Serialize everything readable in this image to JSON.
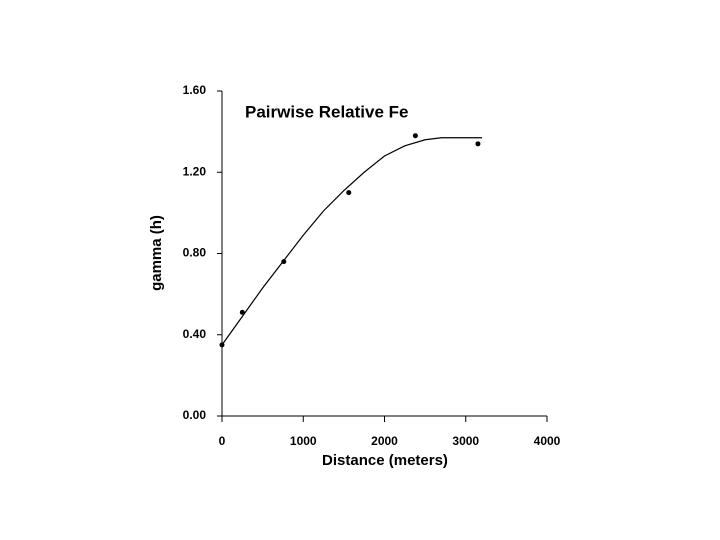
{
  "chart_data": {
    "type": "scatter",
    "title": "Pairwise Relative Fe",
    "x_label": "Distance (meters)",
    "y_label": "gamma (h)",
    "xlim": [
      0,
      4000
    ],
    "xticks": [
      0,
      1000,
      2000,
      3000,
      4000
    ],
    "ylim": [
      0,
      1.6
    ],
    "yticks": [
      {
        "value": 0,
        "label": "0.00"
      },
      {
        "value": 0.4,
        "label": "0.40"
      },
      {
        "value": 0.8,
        "label": "0.80"
      },
      {
        "value": 1.2,
        "label": "1.20"
      },
      {
        "value": 1.6,
        "label": "1.60"
      }
    ],
    "series": [
      {
        "mode": "markers",
        "color": "#000000",
        "x": [
          0,
          250,
          760,
          1560,
          2380,
          3150
        ],
        "values": [
          0.35,
          0.51,
          0.76,
          1.1,
          1.38,
          1.34
        ]
      },
      {
        "mode": "line",
        "color": "#000000",
        "x": [
          0,
          250,
          500,
          750,
          1000,
          1250,
          1500,
          1750,
          2000,
          2250,
          2500,
          2700,
          3000,
          3200
        ],
        "values": [
          0.35,
          0.49,
          0.63,
          0.76,
          0.89,
          1.01,
          1.11,
          1.2,
          1.28,
          1.33,
          1.36,
          1.37,
          1.37,
          1.37
        ]
      }
    ]
  }
}
